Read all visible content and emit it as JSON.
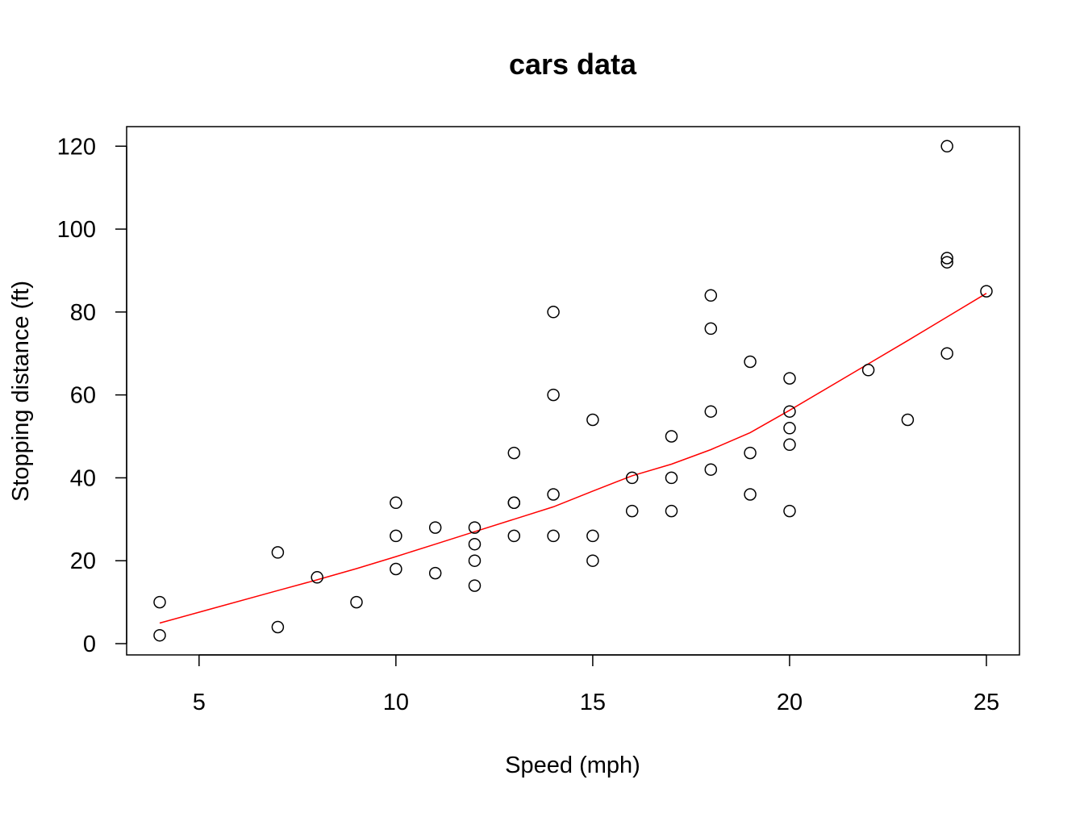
{
  "chart_data": {
    "type": "scatter",
    "title": "cars data",
    "xlabel": "Speed (mph)",
    "ylabel": "Stopping distance (ft)",
    "xlim": [
      3.16,
      25.84
    ],
    "ylim": [
      -2.72,
      124.72
    ],
    "x_ticks": [
      5,
      10,
      15,
      20,
      25
    ],
    "y_ticks": [
      0,
      20,
      40,
      60,
      80,
      100,
      120
    ],
    "grid": false,
    "legend": "none",
    "colors": {
      "points": "#000000",
      "trend": "#ff0000"
    },
    "series": [
      {
        "kind": "points",
        "x": [
          4,
          4,
          7,
          7,
          8,
          9,
          10,
          10,
          10,
          11,
          11,
          12,
          12,
          12,
          12,
          13,
          13,
          13,
          13,
          14,
          14,
          14,
          14,
          15,
          15,
          15,
          16,
          16,
          17,
          17,
          17,
          18,
          18,
          18,
          18,
          19,
          19,
          19,
          20,
          20,
          20,
          20,
          20,
          22,
          23,
          24,
          24,
          24,
          24,
          25
        ],
        "y": [
          2,
          10,
          4,
          22,
          16,
          10,
          18,
          26,
          34,
          17,
          28,
          14,
          20,
          24,
          28,
          26,
          34,
          34,
          46,
          26,
          36,
          60,
          80,
          20,
          26,
          54,
          32,
          40,
          32,
          40,
          50,
          42,
          56,
          76,
          84,
          36,
          46,
          68,
          32,
          48,
          52,
          56,
          64,
          66,
          54,
          70,
          92,
          93,
          120,
          85
        ]
      },
      {
        "kind": "line",
        "x": [
          4,
          7,
          8,
          9,
          10,
          11,
          12,
          13,
          14,
          15,
          16,
          17,
          18,
          19,
          20,
          22,
          23,
          24,
          25
        ],
        "y": [
          4.97,
          12.8,
          15.4,
          18.1,
          21.0,
          24.0,
          27.0,
          30.0,
          33.0,
          36.8,
          40.5,
          43.3,
          46.8,
          50.9,
          56.3,
          67.5,
          73.1,
          78.8,
          84.5
        ]
      }
    ]
  }
}
